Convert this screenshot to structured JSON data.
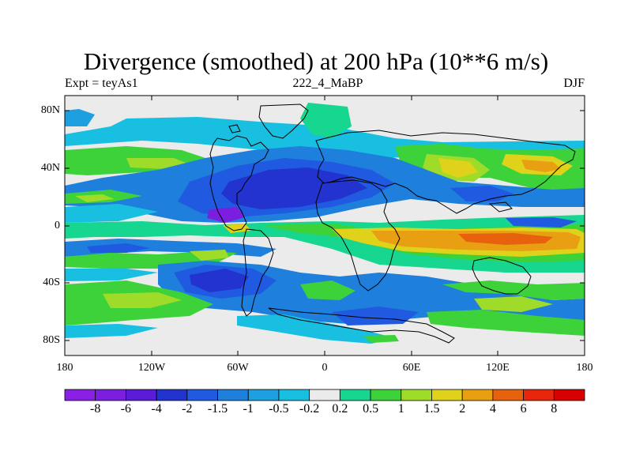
{
  "header": {
    "title": "Divergence (smoothed) at 200 hPa (10**6 m/s)",
    "left": "Expt = teyAs1",
    "center": "222_4_MaBP",
    "right": "DJF"
  },
  "axes": {
    "y_ticks": [
      "80N",
      "40N",
      "0",
      "40S",
      "80S"
    ],
    "x_ticks": [
      "180",
      "120W",
      "60W",
      "0",
      "60E",
      "120E",
      "180"
    ]
  },
  "colorbar": {
    "labels": [
      "-8",
      "-6",
      "-4",
      "-2",
      "-1.5",
      "-1",
      "-0.5",
      "-0.2",
      "0.2",
      "0.5",
      "1",
      "1.5",
      "2",
      "4",
      "6",
      "8"
    ],
    "colors": [
      "#8a1fe6",
      "#7a1ee0",
      "#5a1cd6",
      "#2233d0",
      "#1f5ae0",
      "#1e7fdc",
      "#1ea0e0",
      "#19bfe0",
      "#ebebeb",
      "#16d690",
      "#3dd23a",
      "#9fdc2a",
      "#e0d21a",
      "#e8a012",
      "#e8620e",
      "#e8260c",
      "#d80000"
    ]
  },
  "map": {
    "colors": {
      "background": "#ebebeb",
      "cyan": "#19bfe0",
      "light_blue": "#1ea0e0",
      "mid_blue": "#1e7fdc",
      "blue": "#1f5ae0",
      "dark_blue": "#2233d0",
      "purple": "#7a1ee0",
      "teal": "#16d690",
      "green": "#3dd23a",
      "lime": "#9fdc2a",
      "yellow": "#e0d21a",
      "orange": "#e8a012",
      "red_orange": "#e8620e"
    }
  }
}
